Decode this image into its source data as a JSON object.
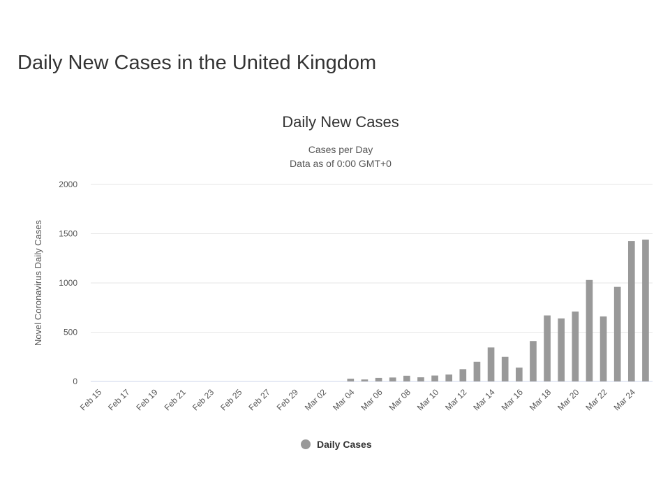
{
  "page": {
    "title": "Daily New Cases in the United Kingdom"
  },
  "chart_data": {
    "type": "bar",
    "title": "Daily New Cases",
    "subtitle_lines": [
      "Cases per Day",
      "Data as of 0:00 GMT+0"
    ],
    "ylabel": "Novel Coronavirus Daily Cases",
    "xlabel": "",
    "ylim": [
      0,
      2000
    ],
    "yticks": [
      0,
      500,
      1000,
      1500,
      2000
    ],
    "categories": [
      "Feb 15",
      "Feb 16",
      "Feb 17",
      "Feb 18",
      "Feb 19",
      "Feb 20",
      "Feb 21",
      "Feb 22",
      "Feb 23",
      "Feb 24",
      "Feb 25",
      "Feb 26",
      "Feb 27",
      "Feb 28",
      "Feb 29",
      "Mar 01",
      "Mar 02",
      "Mar 03",
      "Mar 04",
      "Mar 05",
      "Mar 06",
      "Mar 07",
      "Mar 08",
      "Mar 09",
      "Mar 10",
      "Mar 11",
      "Mar 12",
      "Mar 13",
      "Mar 14",
      "Mar 15",
      "Mar 16",
      "Mar 17",
      "Mar 18",
      "Mar 19",
      "Mar 20",
      "Mar 21",
      "Mar 22",
      "Mar 23",
      "Mar 24",
      "Mar 25"
    ],
    "tick_labels": [
      "Feb 15",
      "Feb 17",
      "Feb 19",
      "Feb 21",
      "Feb 23",
      "Feb 25",
      "Feb 27",
      "Feb 29",
      "Mar 02",
      "Mar 04",
      "Mar 06",
      "Mar 08",
      "Mar 10",
      "Mar 12",
      "Mar 14",
      "Mar 16",
      "Mar 18",
      "Mar 20",
      "Mar 22",
      "Mar 24"
    ],
    "series": [
      {
        "name": "Daily Cases",
        "color": "#999999",
        "values": [
          0,
          0,
          0,
          0,
          0,
          0,
          0,
          0,
          0,
          0,
          0,
          0,
          0,
          0,
          0,
          0,
          0,
          0,
          28,
          20,
          36,
          40,
          58,
          42,
          60,
          70,
          125,
          200,
          345,
          250,
          140,
          410,
          670,
          640,
          710,
          1030,
          660,
          960,
          1425,
          1440
        ]
      }
    ],
    "grid": true,
    "legend_position": "bottom-center"
  }
}
